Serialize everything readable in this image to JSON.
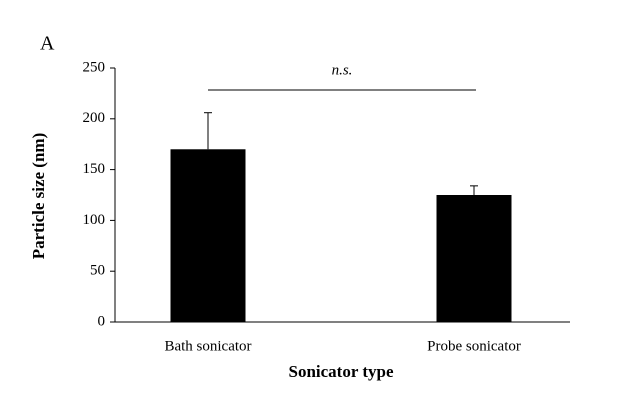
{
  "panel_label": "A",
  "chart_data": {
    "type": "bar",
    "categories": [
      "Bath sonicator",
      "Probe sonicator"
    ],
    "values": [
      170,
      125
    ],
    "errors": [
      36,
      9
    ],
    "color": "#000000",
    "x_label": "Sonicator type",
    "y_label": "Particle size (nm)",
    "annotation": "n.s.",
    "ylim": [
      0,
      250
    ],
    "yticks": [
      0,
      50,
      100,
      150,
      200,
      250
    ],
    "grid": false
  }
}
